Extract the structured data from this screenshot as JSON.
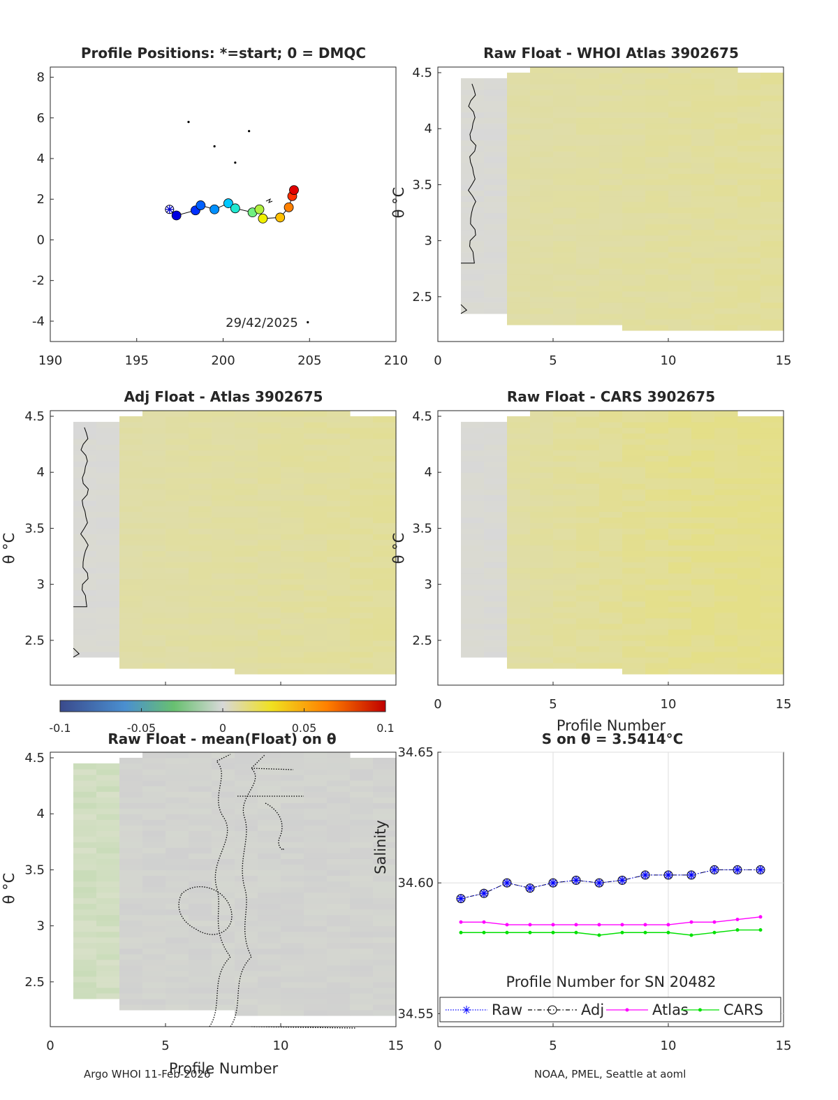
{
  "chart_data": [
    {
      "id": "positions",
      "type": "scatter",
      "title": "Profile Positions: *=start; 0 = DMQC",
      "xlim": [
        190,
        210
      ],
      "ylim": [
        -5,
        8.5
      ],
      "xticks": [
        190,
        195,
        200,
        205,
        210
      ],
      "yticks": [
        -4,
        -2,
        0,
        2,
        4,
        6,
        8
      ],
      "annotation": "29/42/2025",
      "start": {
        "x": 196.9,
        "y": 1.5
      },
      "track": [
        {
          "x": 197.3,
          "y": 1.2,
          "color": "#0000e0"
        },
        {
          "x": 198.4,
          "y": 1.45,
          "color": "#0030ff"
        },
        {
          "x": 198.7,
          "y": 1.7,
          "color": "#0060ff"
        },
        {
          "x": 199.5,
          "y": 1.5,
          "color": "#0090ff"
        },
        {
          "x": 200.3,
          "y": 1.8,
          "color": "#00c8ff"
        },
        {
          "x": 200.7,
          "y": 1.55,
          "color": "#20e8d0"
        },
        {
          "x": 201.7,
          "y": 1.35,
          "color": "#70f080"
        },
        {
          "x": 202.1,
          "y": 1.5,
          "color": "#b0f040"
        },
        {
          "x": 202.3,
          "y": 1.05,
          "color": "#f0f000"
        },
        {
          "x": 203.3,
          "y": 1.1,
          "color": "#ffc000"
        },
        {
          "x": 203.8,
          "y": 1.6,
          "color": "#ff8000"
        },
        {
          "x": 204.0,
          "y": 2.15,
          "color": "#ff3000"
        },
        {
          "x": 204.1,
          "y": 2.45,
          "color": "#e00000"
        }
      ]
    },
    {
      "id": "raw_whoi",
      "type": "heatmap",
      "title": "Raw Float - WHOI Atlas  3902675",
      "xlim": [
        0,
        15
      ],
      "ylim": [
        2.1,
        4.55
      ],
      "xticks": [
        0,
        5,
        10,
        15
      ],
      "yticks": [
        2.5,
        3,
        3.5,
        4,
        4.5
      ],
      "ylabel": "θ °C"
    },
    {
      "id": "adj_atlas",
      "type": "heatmap",
      "title": "Adj Float - Atlas  3902675",
      "xlim": [
        0,
        15
      ],
      "ylim": [
        2.1,
        4.55
      ],
      "yticks": [
        2.5,
        3,
        3.5,
        4,
        4.5
      ],
      "ylabel": "θ °C"
    },
    {
      "id": "raw_cars",
      "type": "heatmap",
      "title": "Raw Float - CARS  3902675",
      "xlim": [
        0,
        15
      ],
      "ylim": [
        2.1,
        4.55
      ],
      "xticks": [
        0,
        5,
        10,
        15
      ],
      "yticks": [
        2.5,
        3,
        3.5,
        4,
        4.5
      ],
      "xlabel": "Profile Number",
      "ylabel": "θ °C"
    },
    {
      "id": "colorbar",
      "type": "colorbar",
      "range": [
        -0.1,
        0.1
      ],
      "ticks": [
        "-0.1",
        "-0.05",
        "0",
        "0.05",
        "0.1"
      ]
    },
    {
      "id": "raw_mean",
      "type": "heatmap",
      "title": "Raw Float - mean(Float) on θ",
      "xlim": [
        0,
        15
      ],
      "ylim": [
        2.1,
        4.55
      ],
      "xticks": [
        0,
        5,
        10,
        15
      ],
      "yticks": [
        2.5,
        3,
        3.5,
        4,
        4.5
      ],
      "xlabel": "Profile Number",
      "ylabel": "θ °C"
    },
    {
      "id": "salinity",
      "type": "line",
      "title": "S on θ = 3.5414°C",
      "xlim": [
        0,
        15
      ],
      "ylim": [
        34.545,
        34.65
      ],
      "xticks": [
        0,
        5,
        10,
        15
      ],
      "yticks": [
        34.55,
        34.6,
        34.65
      ],
      "xlabel": "Profile Number for SN 20482",
      "ylabel": "Salinity",
      "x": [
        1,
        2,
        3,
        4,
        5,
        6,
        7,
        8,
        9,
        10,
        11,
        12,
        13,
        14
      ],
      "series": [
        {
          "name": "Raw",
          "color": "#0000ff",
          "values": [
            34.594,
            34.596,
            34.6,
            34.598,
            34.6,
            34.601,
            34.6,
            34.601,
            34.603,
            34.603,
            34.603,
            34.605,
            34.605,
            34.605
          ]
        },
        {
          "name": "Adj",
          "color": "#000000",
          "values": [
            34.594,
            34.596,
            34.6,
            34.598,
            34.6,
            34.601,
            34.6,
            34.601,
            34.603,
            34.603,
            34.603,
            34.605,
            34.605,
            34.605
          ]
        },
        {
          "name": "Atlas",
          "color": "#ff00ff",
          "values": [
            34.585,
            34.585,
            34.584,
            34.584,
            34.584,
            34.584,
            34.584,
            34.584,
            34.584,
            34.584,
            34.585,
            34.585,
            34.586,
            34.587
          ]
        },
        {
          "name": "CARS",
          "color": "#00e000",
          "values": [
            34.581,
            34.581,
            34.581,
            34.581,
            34.581,
            34.581,
            34.58,
            34.581,
            34.581,
            34.581,
            34.58,
            34.581,
            34.582,
            34.582
          ]
        }
      ]
    }
  ],
  "footer": {
    "left": "Argo WHOI 11-Feb-2026",
    "right": "NOAA, PMEL, Seattle at aoml"
  }
}
